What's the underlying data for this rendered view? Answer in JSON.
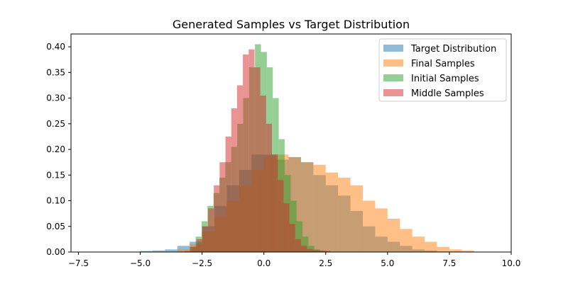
{
  "chart_data": {
    "type": "histogram",
    "title": "Generated Samples vs Target Distribution",
    "xlabel": "",
    "ylabel": "",
    "xlim": [
      -7.8,
      10.0
    ],
    "ylim": [
      0,
      0.425
    ],
    "x_ticks": [
      -7.5,
      -5.0,
      -2.5,
      0.0,
      2.5,
      5.0,
      7.5,
      10.0
    ],
    "x_tick_labels": [
      "−7.5",
      "−5.0",
      "−2.5",
      "0.0",
      "2.5",
      "5.0",
      "7.5",
      "10.0"
    ],
    "y_ticks": [
      0.0,
      0.05,
      0.1,
      0.15,
      0.2,
      0.25,
      0.3,
      0.35,
      0.4
    ],
    "y_tick_labels": [
      "0.00",
      "0.05",
      "0.10",
      "0.15",
      "0.20",
      "0.25",
      "0.30",
      "0.35",
      "0.40"
    ],
    "legend_position": "top-right",
    "alpha": 0.5,
    "series": [
      {
        "name": "Target Distribution",
        "color": "#1f77b4",
        "bin_start": -5.0,
        "bin_width": 0.5,
        "values": [
          0.002,
          0.003,
          0.005,
          0.012,
          0.02,
          0.05,
          0.09,
          0.13,
          0.16,
          0.19,
          0.19,
          0.18,
          0.185,
          0.175,
          0.15,
          0.13,
          0.11,
          0.08,
          0.05,
          0.03,
          0.02,
          0.012,
          0.005,
          0.003,
          0.001,
          0.001
        ]
      },
      {
        "name": "Final Samples",
        "color": "#ff7f0e",
        "bin_start": -3.5,
        "bin_width": 0.5,
        "values": [
          0.005,
          0.015,
          0.04,
          0.07,
          0.1,
          0.13,
          0.16,
          0.185,
          0.19,
          0.185,
          0.175,
          0.17,
          0.155,
          0.145,
          0.13,
          0.1,
          0.085,
          0.065,
          0.045,
          0.03,
          0.02,
          0.01,
          0.005,
          0.003
        ]
      },
      {
        "name": "Initial Samples",
        "color": "#2ca02c",
        "bin_start": -3.0,
        "bin_width": 0.24,
        "values": [
          0.01,
          0.03,
          0.06,
          0.09,
          0.115,
          0.145,
          0.175,
          0.205,
          0.25,
          0.3,
          0.36,
          0.405,
          0.39,
          0.36,
          0.3,
          0.22,
          0.15,
          0.1,
          0.06,
          0.03,
          0.012,
          0.005,
          0.002
        ]
      },
      {
        "name": "Middle Samples",
        "color": "#d62728",
        "bin_start": -3.2,
        "bin_width": 0.235,
        "values": [
          0.002,
          0.01,
          0.025,
          0.05,
          0.085,
          0.13,
          0.175,
          0.225,
          0.28,
          0.325,
          0.385,
          0.395,
          0.36,
          0.305,
          0.25,
          0.19,
          0.14,
          0.095,
          0.055,
          0.025,
          0.012,
          0.006,
          0.004,
          0.003,
          0.002
        ]
      }
    ]
  }
}
